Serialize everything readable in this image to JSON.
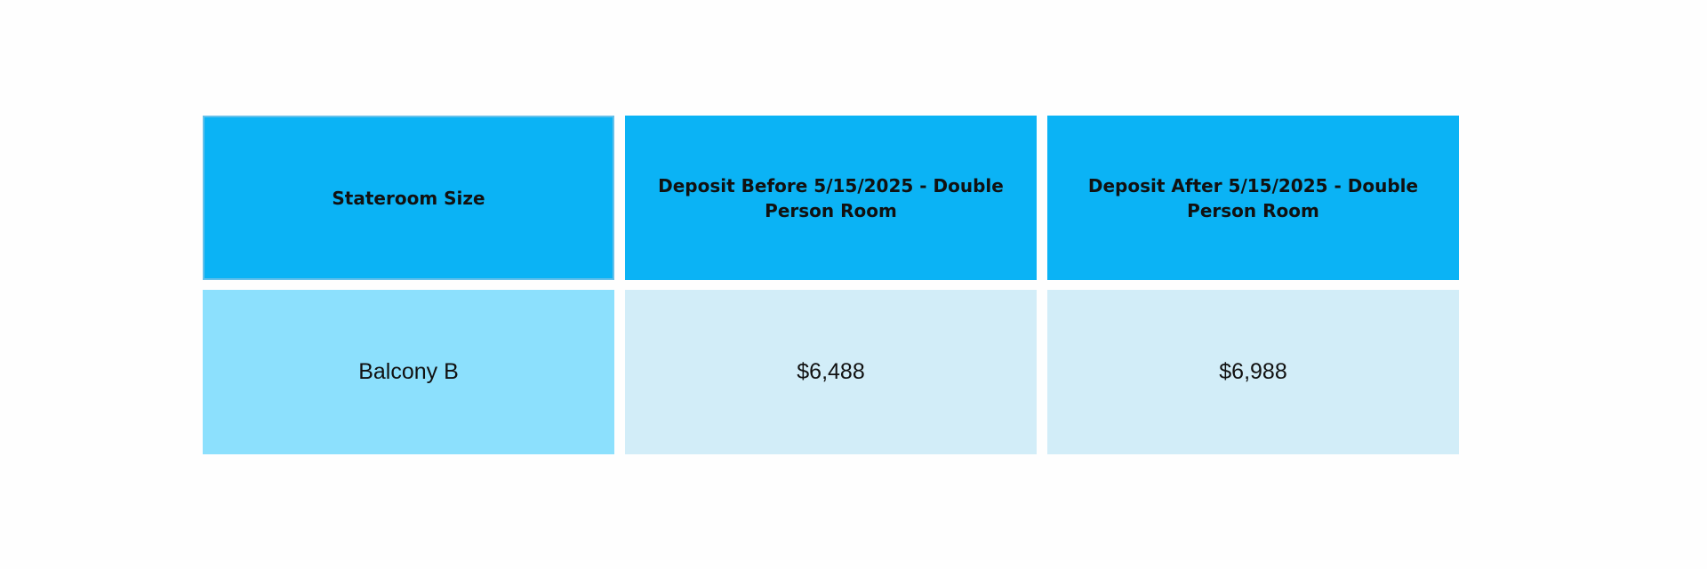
{
  "table": {
    "headers": [
      "Stateroom Size",
      "Deposit Before 5/15/2025 - Double Person Room",
      "Deposit After 5/15/2025 - Double Person Room"
    ],
    "rows": [
      [
        "Balcony B",
        "$6,488",
        "$6,988"
      ]
    ]
  }
}
